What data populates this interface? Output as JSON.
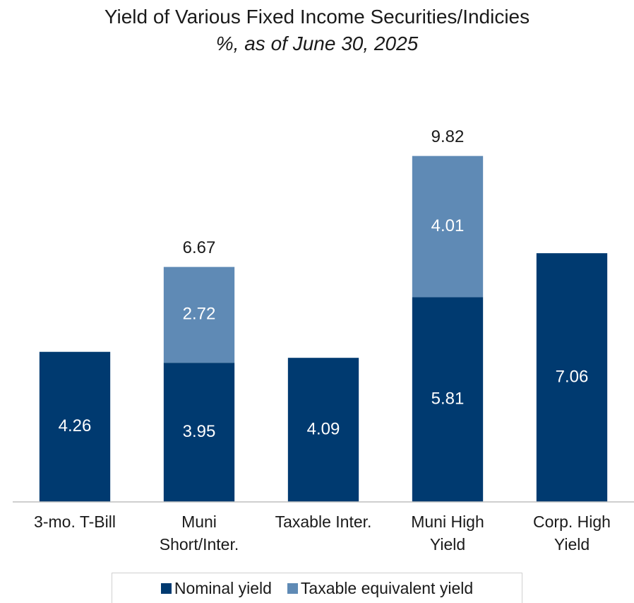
{
  "chart_data": {
    "type": "stacked_bar",
    "title": "Yield of Various Fixed Income Securities/Indicies",
    "subtitle": "%, as of June 30, 2025",
    "categories": [
      "3-mo. T-Bill",
      "Muni\nShort/Inter.",
      "Taxable Inter.",
      "Muni High\nYield",
      "Corp. High\nYield"
    ],
    "series": [
      {
        "name": "Nominal yield",
        "color": "#003a70",
        "values": [
          4.26,
          3.95,
          4.09,
          5.81,
          7.06
        ]
      },
      {
        "name": "Taxable equivalent yield",
        "color": "#5f8ab5",
        "values": [
          null,
          2.72,
          null,
          4.01,
          null
        ]
      }
    ],
    "totals": [
      null,
      6.67,
      null,
      9.82,
      null
    ],
    "ylim": [
      0,
      12
    ],
    "legend": "bottom"
  }
}
